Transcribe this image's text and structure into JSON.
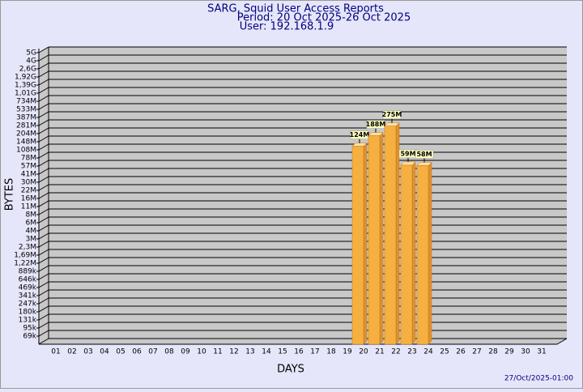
{
  "chart_data": {
    "type": "bar",
    "title": "SARG, Squid User Access Reports",
    "subtitle": [
      "Period: 20 Oct 2025-26 Oct 2025",
      "User: 192.168.1.9"
    ],
    "y_label": "BYTES",
    "x_label": "DAYS",
    "footer": "27/Oct/2025-01:00",
    "categories": [
      "01",
      "02",
      "03",
      "04",
      "05",
      "06",
      "07",
      "08",
      "09",
      "10",
      "11",
      "12",
      "13",
      "14",
      "15",
      "16",
      "17",
      "18",
      "19",
      "20",
      "21",
      "22",
      "23",
      "24",
      "25",
      "26",
      "27",
      "28",
      "29",
      "30",
      "31"
    ],
    "values": [
      null,
      null,
      null,
      null,
      null,
      null,
      null,
      null,
      null,
      null,
      null,
      null,
      null,
      null,
      null,
      null,
      null,
      null,
      null,
      124000000,
      188000000,
      275000000,
      59000000,
      58000000,
      null,
      null,
      null,
      null,
      null,
      null,
      null
    ],
    "value_labels": [
      null,
      null,
      null,
      null,
      null,
      null,
      null,
      null,
      null,
      null,
      null,
      null,
      null,
      null,
      null,
      null,
      null,
      null,
      null,
      "124M",
      "188M",
      "275M",
      "59M",
      "58M",
      null,
      null,
      null,
      null,
      null,
      null,
      null
    ],
    "color": "#f5b041",
    "log_scale": true,
    "grid": true,
    "ylim": [
      50000,
      5000000000
    ],
    "yticks": [
      {
        "value": 69000,
        "label": "69k"
      },
      {
        "value": 95000,
        "label": "95k"
      },
      {
        "value": 131000,
        "label": "131k"
      },
      {
        "value": 180000,
        "label": "180k"
      },
      {
        "value": 247000,
        "label": "247k"
      },
      {
        "value": 341000,
        "label": "341k"
      },
      {
        "value": 469000,
        "label": "469k"
      },
      {
        "value": 646000,
        "label": "646k"
      },
      {
        "value": 889000,
        "label": "889k"
      },
      {
        "value": 1220000,
        "label": "1,22M"
      },
      {
        "value": 1690000,
        "label": "1,69M"
      },
      {
        "value": 2300000,
        "label": "2,3M"
      },
      {
        "value": 3000000,
        "label": "3M"
      },
      {
        "value": 4000000,
        "label": "4M"
      },
      {
        "value": 6000000,
        "label": "6M"
      },
      {
        "value": 8000000,
        "label": "8M"
      },
      {
        "value": 11000000,
        "label": "11M"
      },
      {
        "value": 16000000,
        "label": "16M"
      },
      {
        "value": 22000000,
        "label": "22M"
      },
      {
        "value": 30000000,
        "label": "30M"
      },
      {
        "value": 41000000,
        "label": "41M"
      },
      {
        "value": 57000000,
        "label": "57M"
      },
      {
        "value": 78000000,
        "label": "78M"
      },
      {
        "value": 108000000,
        "label": "108M"
      },
      {
        "value": 148000000,
        "label": "148M"
      },
      {
        "value": 204000000,
        "label": "204M"
      },
      {
        "value": 281000000,
        "label": "281M"
      },
      {
        "value": 387000000,
        "label": "387M"
      },
      {
        "value": 533000000,
        "label": "533M"
      },
      {
        "value": 734000000,
        "label": "734M"
      },
      {
        "value": 1010000000,
        "label": "1,01G"
      },
      {
        "value": 1390000000,
        "label": "1,39G"
      },
      {
        "value": 1920000000,
        "label": "1,92G"
      },
      {
        "value": 2600000000,
        "label": "2,6G"
      },
      {
        "value": 4000000000,
        "label": "4G"
      },
      {
        "value": 5000000000,
        "label": "5G"
      }
    ]
  }
}
